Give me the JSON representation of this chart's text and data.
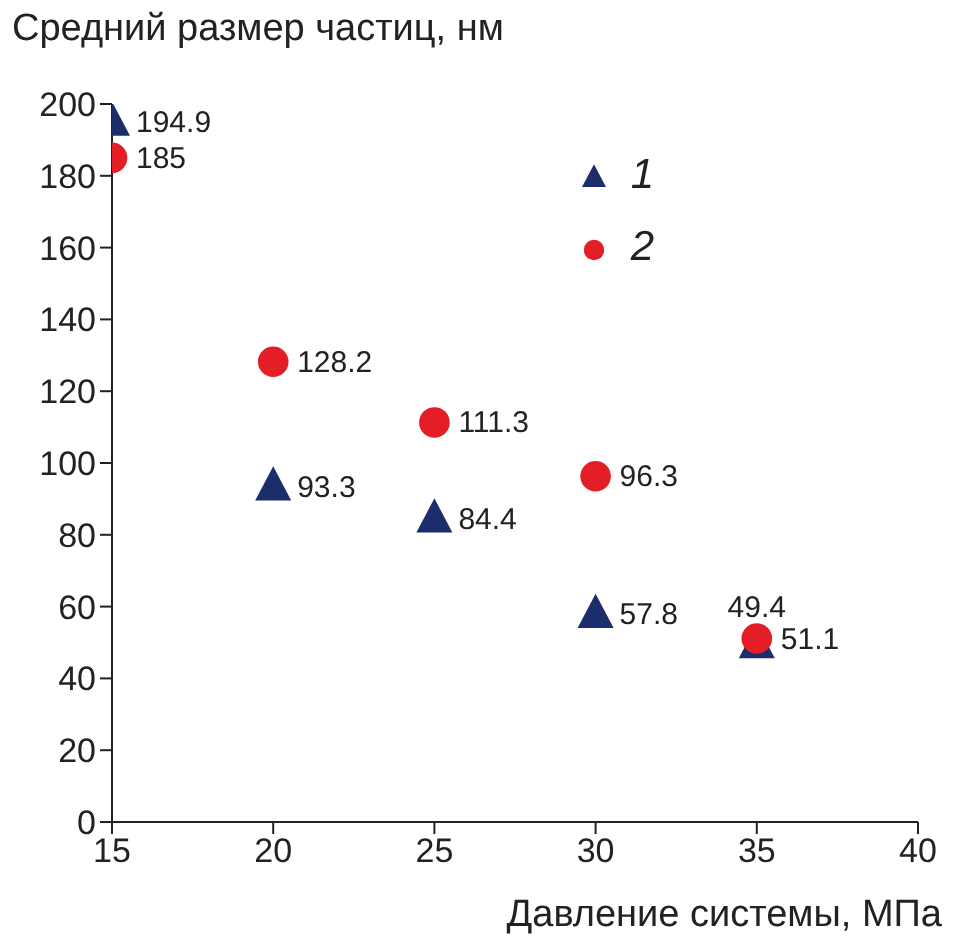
{
  "chart_data": {
    "type": "scatter",
    "xlabel": "Давление системы, МПа",
    "ylabel": "Средний размер частиц, нм",
    "x": [
      15,
      20,
      25,
      30,
      35
    ],
    "series": [
      {
        "name": "1",
        "color": "#1c2d6b",
        "marker": "triangle",
        "values": [
          194.9,
          93.3,
          84.4,
          57.8,
          49.4
        ]
      },
      {
        "name": "2",
        "color": "#e41e26",
        "marker": "circle",
        "values": [
          185,
          128.2,
          111.3,
          96.3,
          51.1
        ]
      }
    ],
    "xlim": [
      15,
      40
    ],
    "xticks": [
      15,
      20,
      25,
      30,
      35,
      40
    ],
    "ylim": [
      0,
      200
    ],
    "yticks": [
      0,
      20,
      40,
      60,
      80,
      100,
      120,
      140,
      160,
      180,
      200
    ],
    "grid": false,
    "legend": "top right",
    "data_labels": true
  }
}
